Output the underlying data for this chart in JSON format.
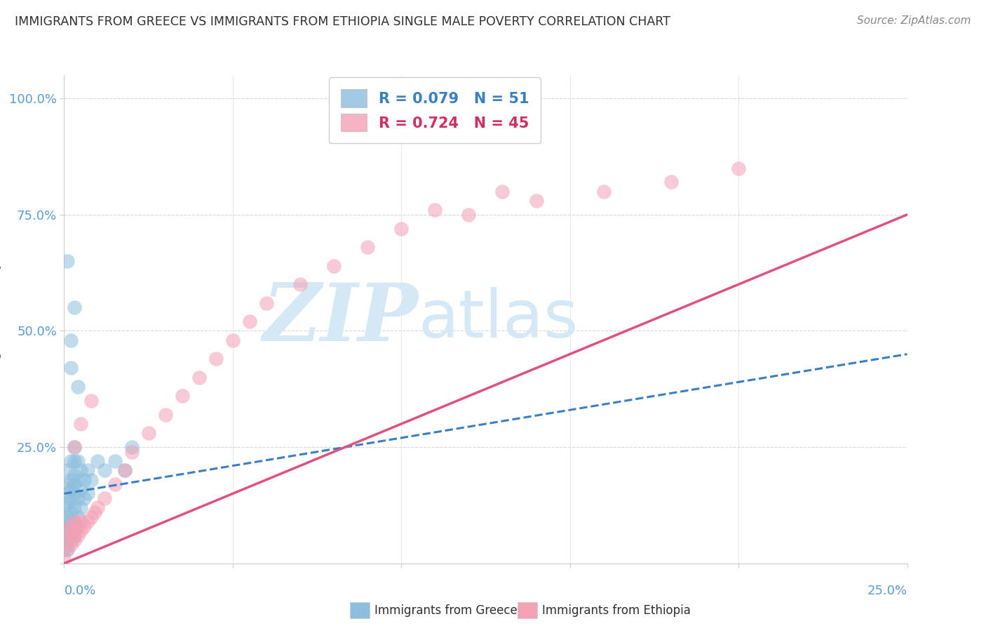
{
  "title": "IMMIGRANTS FROM GREECE VS IMMIGRANTS FROM ETHIOPIA SINGLE MALE POVERTY CORRELATION CHART",
  "source": "Source: ZipAtlas.com",
  "ylabel": "Single Male Poverty",
  "xlim": [
    0.0,
    0.25
  ],
  "ylim": [
    0.0,
    1.05
  ],
  "greece_R": 0.079,
  "greece_N": 51,
  "ethiopia_R": 0.724,
  "ethiopia_N": 45,
  "greece_color": "#8bbfdd",
  "ethiopia_color": "#f4a0b5",
  "greece_line_color": "#3a7fc1",
  "ethiopia_line_color": "#e05080",
  "watermark_zip": "ZIP",
  "watermark_atlas": "atlas",
  "watermark_color": "#d5e8f5",
  "yticks": [
    0.0,
    0.25,
    0.5,
    0.75,
    1.0
  ],
  "ytick_labels": [
    "",
    "25.0%",
    "50.0%",
    "75.0%",
    "100.0%"
  ],
  "greece_line_x0": 0.0,
  "greece_line_y0": 0.15,
  "greece_line_x1": 0.25,
  "greece_line_y1": 0.45,
  "ethiopia_line_x0": 0.0,
  "ethiopia_line_y0": 0.0,
  "ethiopia_line_x1": 0.25,
  "ethiopia_line_y1": 0.75,
  "greece_scatter_x": [
    0.0,
    0.0,
    0.0,
    0.001,
    0.001,
    0.001,
    0.001,
    0.001,
    0.001,
    0.001,
    0.001,
    0.001,
    0.001,
    0.002,
    0.002,
    0.002,
    0.002,
    0.002,
    0.002,
    0.002,
    0.002,
    0.003,
    0.003,
    0.003,
    0.003,
    0.003,
    0.003,
    0.003,
    0.003,
    0.004,
    0.004,
    0.004,
    0.004,
    0.005,
    0.005,
    0.005,
    0.006,
    0.006,
    0.007,
    0.007,
    0.008,
    0.01,
    0.012,
    0.015,
    0.018,
    0.02,
    0.003,
    0.002,
    0.004,
    0.001,
    0.002
  ],
  "greece_scatter_y": [
    0.03,
    0.05,
    0.07,
    0.03,
    0.05,
    0.07,
    0.09,
    0.1,
    0.12,
    0.13,
    0.15,
    0.17,
    0.2,
    0.05,
    0.07,
    0.09,
    0.11,
    0.14,
    0.16,
    0.18,
    0.22,
    0.06,
    0.09,
    0.12,
    0.15,
    0.17,
    0.19,
    0.22,
    0.25,
    0.1,
    0.14,
    0.18,
    0.22,
    0.12,
    0.16,
    0.2,
    0.14,
    0.18,
    0.15,
    0.2,
    0.18,
    0.22,
    0.2,
    0.22,
    0.2,
    0.25,
    0.55,
    0.42,
    0.38,
    0.65,
    0.48
  ],
  "ethiopia_scatter_x": [
    0.0,
    0.001,
    0.001,
    0.001,
    0.002,
    0.002,
    0.002,
    0.003,
    0.003,
    0.003,
    0.004,
    0.004,
    0.005,
    0.005,
    0.006,
    0.007,
    0.008,
    0.009,
    0.01,
    0.012,
    0.015,
    0.018,
    0.02,
    0.025,
    0.03,
    0.035,
    0.04,
    0.045,
    0.05,
    0.055,
    0.06,
    0.07,
    0.08,
    0.09,
    0.1,
    0.12,
    0.14,
    0.16,
    0.18,
    0.2,
    0.003,
    0.005,
    0.008,
    0.11,
    0.13
  ],
  "ethiopia_scatter_y": [
    0.01,
    0.03,
    0.05,
    0.07,
    0.04,
    0.06,
    0.08,
    0.05,
    0.07,
    0.09,
    0.06,
    0.08,
    0.07,
    0.09,
    0.08,
    0.09,
    0.1,
    0.11,
    0.12,
    0.14,
    0.17,
    0.2,
    0.24,
    0.28,
    0.32,
    0.36,
    0.4,
    0.44,
    0.48,
    0.52,
    0.56,
    0.6,
    0.64,
    0.68,
    0.72,
    0.75,
    0.78,
    0.8,
    0.82,
    0.85,
    0.25,
    0.3,
    0.35,
    0.76,
    0.8
  ]
}
